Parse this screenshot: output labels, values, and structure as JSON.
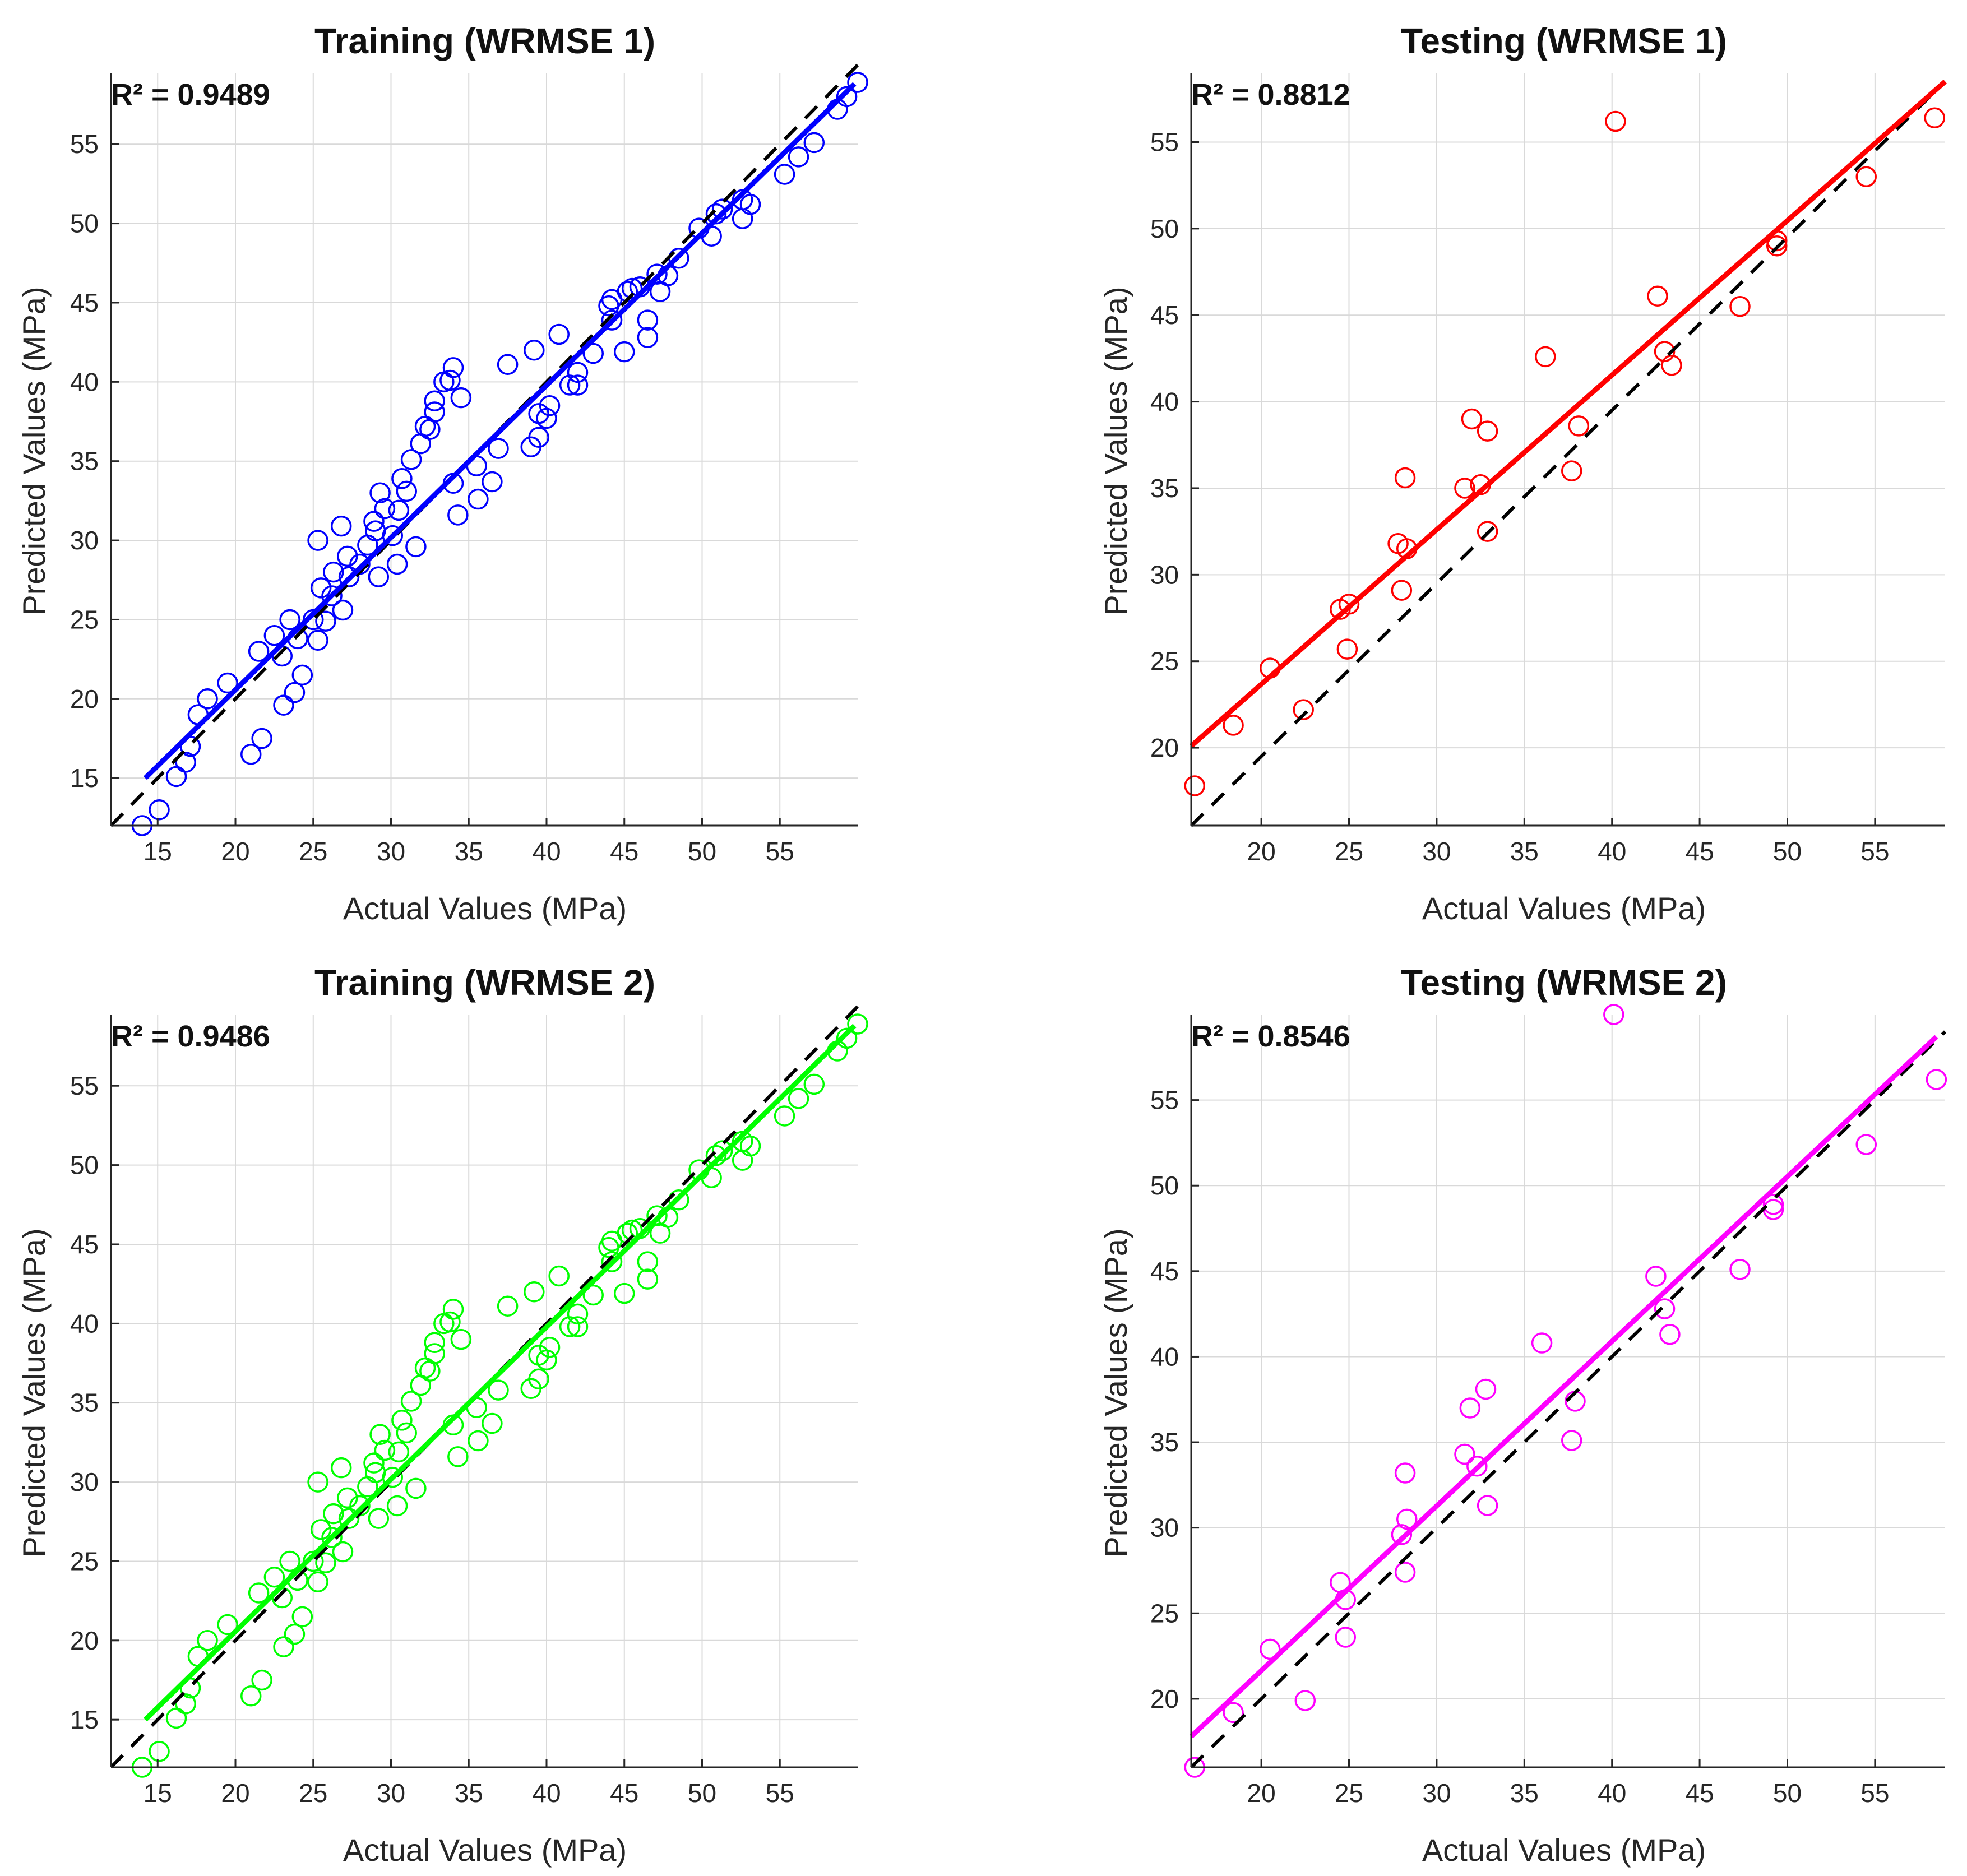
{
  "chart_data": [
    {
      "type": "scatter",
      "title": "Training (WRMSE 1)",
      "annotation": "R² = 0.9489",
      "xlabel": "Actual Values (MPa)",
      "ylabel": "Predicted Values (MPa)",
      "xlim": [
        12,
        60
      ],
      "ylim": [
        12,
        59.5
      ],
      "xticks": [
        15,
        20,
        25,
        30,
        35,
        40,
        45,
        50,
        55
      ],
      "yticks": [
        15,
        20,
        25,
        30,
        35,
        40,
        45,
        50,
        55
      ],
      "color": "#0000ff",
      "fit_line": {
        "x": [
          14.2,
          59.8
        ],
        "y": [
          15,
          58.8
        ]
      },
      "reference_line": {
        "x": [
          12,
          60
        ],
        "y": [
          12,
          60
        ]
      },
      "points": [
        [
          14.0,
          12.0
        ],
        [
          15.1,
          13.0
        ],
        [
          16.2,
          15.1
        ],
        [
          16.8,
          16.0
        ],
        [
          17.1,
          17.0
        ],
        [
          17.6,
          19.0
        ],
        [
          18.2,
          20.0
        ],
        [
          19.5,
          21.0
        ],
        [
          21.0,
          16.5
        ],
        [
          21.7,
          17.5
        ],
        [
          21.5,
          23.0
        ],
        [
          22.5,
          24.0
        ],
        [
          23.0,
          22.7
        ],
        [
          23.5,
          25.0
        ],
        [
          23.1,
          19.6
        ],
        [
          23.8,
          20.4
        ],
        [
          24.3,
          21.5
        ],
        [
          24.0,
          23.8
        ],
        [
          25.0,
          25.0
        ],
        [
          25.3,
          23.7
        ],
        [
          25.5,
          27.0
        ],
        [
          25.3,
          30.0
        ],
        [
          25.8,
          24.9
        ],
        [
          26.2,
          26.5
        ],
        [
          26.3,
          28.0
        ],
        [
          26.8,
          30.9
        ],
        [
          26.9,
          25.6
        ],
        [
          27.3,
          27.7
        ],
        [
          27.2,
          29.0
        ],
        [
          28.0,
          28.5
        ],
        [
          28.5,
          29.7
        ],
        [
          28.9,
          31.2
        ],
        [
          29.2,
          27.7
        ],
        [
          29.0,
          30.6
        ],
        [
          29.3,
          33.0
        ],
        [
          29.6,
          32.0
        ],
        [
          30.1,
          30.3
        ],
        [
          30.5,
          31.9
        ],
        [
          30.4,
          28.5
        ],
        [
          30.7,
          33.9
        ],
        [
          31.0,
          33.1
        ],
        [
          31.3,
          35.1
        ],
        [
          31.6,
          29.6
        ],
        [
          31.9,
          36.1
        ],
        [
          32.2,
          37.2
        ],
        [
          32.5,
          37.0
        ],
        [
          32.8,
          38.8
        ],
        [
          32.8,
          38.1
        ],
        [
          33.4,
          40.0
        ],
        [
          33.8,
          40.1
        ],
        [
          34.0,
          40.9
        ],
        [
          34.0,
          33.6
        ],
        [
          34.3,
          31.6
        ],
        [
          34.5,
          39.0
        ],
        [
          35.5,
          34.7
        ],
        [
          35.6,
          32.6
        ],
        [
          36.5,
          33.7
        ],
        [
          36.9,
          35.8
        ],
        [
          37.5,
          41.1
        ],
        [
          39.0,
          35.9
        ],
        [
          39.2,
          42.0
        ],
        [
          39.5,
          38.0
        ],
        [
          39.5,
          36.5
        ],
        [
          40.0,
          37.7
        ],
        [
          40.2,
          38.5
        ],
        [
          40.8,
          43.0
        ],
        [
          41.5,
          39.8
        ],
        [
          42.0,
          40.6
        ],
        [
          42.0,
          39.8
        ],
        [
          43.0,
          41.8
        ],
        [
          44.0,
          44.8
        ],
        [
          44.2,
          45.2
        ],
        [
          44.2,
          43.9
        ],
        [
          45.0,
          41.9
        ],
        [
          45.2,
          45.7
        ],
        [
          45.5,
          45.9
        ],
        [
          46.0,
          46.0
        ],
        [
          46.5,
          42.8
        ],
        [
          46.5,
          43.9
        ],
        [
          47.1,
          46.8
        ],
        [
          47.3,
          45.7
        ],
        [
          47.8,
          46.7
        ],
        [
          48.5,
          47.8
        ],
        [
          49.8,
          49.7
        ],
        [
          50.6,
          49.2
        ],
        [
          50.9,
          50.6
        ],
        [
          51.3,
          50.9
        ],
        [
          52.6,
          50.3
        ],
        [
          52.6,
          51.5
        ],
        [
          53.1,
          51.2
        ],
        [
          55.3,
          53.1
        ],
        [
          56.2,
          54.2
        ],
        [
          57.2,
          55.1
        ],
        [
          58.7,
          57.2
        ],
        [
          59.3,
          58.0
        ],
        [
          60.0,
          58.9
        ]
      ]
    },
    {
      "type": "scatter",
      "title": "Testing (WRMSE 1)",
      "annotation": "R² = 0.8812",
      "xlabel": "Actual Values (MPa)",
      "ylabel": "Predicted Values (MPa)",
      "xlim": [
        16,
        59
      ],
      "ylim": [
        15.5,
        59
      ],
      "xticks": [
        20,
        25,
        30,
        35,
        40,
        45,
        50,
        55
      ],
      "yticks": [
        20,
        25,
        30,
        35,
        40,
        45,
        50,
        55
      ],
      "color": "#ff0000",
      "fit_line": {
        "x": [
          16,
          59
        ],
        "y": [
          20.1,
          58.5
        ]
      },
      "reference_line": {
        "x": [
          16,
          59
        ],
        "y": [
          15.5,
          58.5
        ]
      },
      "points": [
        [
          16.2,
          17.8
        ],
        [
          18.4,
          21.3
        ],
        [
          20.5,
          24.6
        ],
        [
          22.4,
          22.2
        ],
        [
          24.5,
          28.0
        ],
        [
          25.0,
          28.3
        ],
        [
          24.9,
          25.7
        ],
        [
          27.8,
          31.8
        ],
        [
          28.2,
          35.6
        ],
        [
          28.0,
          29.1
        ],
        [
          28.3,
          31.5
        ],
        [
          31.6,
          35.0
        ],
        [
          32.0,
          39.0
        ],
        [
          32.5,
          35.2
        ],
        [
          32.9,
          38.3
        ],
        [
          32.9,
          32.5
        ],
        [
          36.2,
          42.6
        ],
        [
          37.7,
          36.0
        ],
        [
          38.1,
          38.6
        ],
        [
          40.2,
          56.2
        ],
        [
          42.6,
          46.1
        ],
        [
          43.0,
          42.9
        ],
        [
          43.4,
          42.1
        ],
        [
          47.3,
          45.5
        ],
        [
          49.4,
          49.0
        ],
        [
          49.4,
          49.3
        ],
        [
          54.5,
          53.0
        ],
        [
          58.4,
          56.4
        ]
      ]
    },
    {
      "type": "scatter",
      "title": "Training (WRMSE 2)",
      "annotation": "R² = 0.9486",
      "xlabel": "Actual Values (MPa)",
      "ylabel": "Predicted Values (MPa)",
      "xlim": [
        12,
        60
      ],
      "ylim": [
        12,
        59.5
      ],
      "xticks": [
        15,
        20,
        25,
        30,
        35,
        40,
        45,
        50,
        55
      ],
      "yticks": [
        15,
        20,
        25,
        30,
        35,
        40,
        45,
        50,
        55
      ],
      "color": "#00ff00",
      "fit_line": {
        "x": [
          14.2,
          59.8
        ],
        "y": [
          15,
          58.8
        ]
      },
      "reference_line": {
        "x": [
          12,
          60
        ],
        "y": [
          12,
          60
        ]
      },
      "points": [
        [
          14.0,
          12.0
        ],
        [
          15.1,
          13.0
        ],
        [
          16.2,
          15.1
        ],
        [
          16.8,
          16.0
        ],
        [
          17.1,
          17.0
        ],
        [
          17.6,
          19.0
        ],
        [
          18.2,
          20.0
        ],
        [
          19.5,
          21.0
        ],
        [
          21.0,
          16.5
        ],
        [
          21.7,
          17.5
        ],
        [
          21.5,
          23.0
        ],
        [
          22.5,
          24.0
        ],
        [
          23.0,
          22.7
        ],
        [
          23.5,
          25.0
        ],
        [
          23.1,
          19.6
        ],
        [
          23.8,
          20.4
        ],
        [
          24.3,
          21.5
        ],
        [
          24.0,
          23.8
        ],
        [
          25.0,
          25.0
        ],
        [
          25.3,
          23.7
        ],
        [
          25.5,
          27.0
        ],
        [
          25.3,
          30.0
        ],
        [
          25.8,
          24.9
        ],
        [
          26.2,
          26.5
        ],
        [
          26.3,
          28.0
        ],
        [
          26.8,
          30.9
        ],
        [
          26.9,
          25.6
        ],
        [
          27.3,
          27.7
        ],
        [
          27.2,
          29.0
        ],
        [
          28.0,
          28.5
        ],
        [
          28.5,
          29.7
        ],
        [
          28.9,
          31.2
        ],
        [
          29.2,
          27.7
        ],
        [
          29.0,
          30.6
        ],
        [
          29.3,
          33.0
        ],
        [
          29.6,
          32.0
        ],
        [
          30.1,
          30.3
        ],
        [
          30.5,
          31.9
        ],
        [
          30.4,
          28.5
        ],
        [
          30.7,
          33.9
        ],
        [
          31.0,
          33.1
        ],
        [
          31.3,
          35.1
        ],
        [
          31.6,
          29.6
        ],
        [
          31.9,
          36.1
        ],
        [
          32.2,
          37.2
        ],
        [
          32.5,
          37.0
        ],
        [
          32.8,
          38.8
        ],
        [
          32.8,
          38.1
        ],
        [
          33.4,
          40.0
        ],
        [
          33.8,
          40.1
        ],
        [
          34.0,
          40.9
        ],
        [
          34.0,
          33.6
        ],
        [
          34.3,
          31.6
        ],
        [
          34.5,
          39.0
        ],
        [
          35.5,
          34.7
        ],
        [
          35.6,
          32.6
        ],
        [
          36.5,
          33.7
        ],
        [
          36.9,
          35.8
        ],
        [
          37.5,
          41.1
        ],
        [
          39.0,
          35.9
        ],
        [
          39.2,
          42.0
        ],
        [
          39.5,
          38.0
        ],
        [
          39.5,
          36.5
        ],
        [
          40.0,
          37.7
        ],
        [
          40.2,
          38.5
        ],
        [
          40.8,
          43.0
        ],
        [
          41.5,
          39.8
        ],
        [
          42.0,
          40.6
        ],
        [
          42.0,
          39.8
        ],
        [
          43.0,
          41.8
        ],
        [
          44.0,
          44.8
        ],
        [
          44.2,
          45.2
        ],
        [
          44.2,
          43.9
        ],
        [
          45.0,
          41.9
        ],
        [
          45.2,
          45.7
        ],
        [
          45.5,
          45.9
        ],
        [
          46.0,
          46.0
        ],
        [
          46.5,
          42.8
        ],
        [
          46.5,
          43.9
        ],
        [
          47.1,
          46.8
        ],
        [
          47.3,
          45.7
        ],
        [
          47.8,
          46.7
        ],
        [
          48.5,
          47.8
        ],
        [
          49.8,
          49.7
        ],
        [
          50.6,
          49.2
        ],
        [
          50.9,
          50.6
        ],
        [
          51.3,
          50.9
        ],
        [
          52.6,
          50.3
        ],
        [
          52.6,
          51.5
        ],
        [
          53.1,
          51.2
        ],
        [
          55.3,
          53.1
        ],
        [
          56.2,
          54.2
        ],
        [
          57.2,
          55.1
        ],
        [
          58.7,
          57.2
        ],
        [
          59.3,
          58.0
        ],
        [
          60.0,
          58.9
        ]
      ]
    },
    {
      "type": "scatter",
      "title": "Testing (WRMSE 2)",
      "annotation": "R² = 0.8546",
      "xlabel": "Actual Values (MPa)",
      "ylabel": "Predicted Values (MPa)",
      "xlim": [
        16,
        59
      ],
      "ylim": [
        16,
        60
      ],
      "xticks": [
        20,
        25,
        30,
        35,
        40,
        45,
        50,
        55
      ],
      "yticks": [
        20,
        25,
        30,
        35,
        40,
        45,
        50,
        55
      ],
      "color": "#ff00ff",
      "fit_line": {
        "x": [
          16,
          58.5
        ],
        "y": [
          17.8,
          58.7
        ]
      },
      "reference_line": {
        "x": [
          16,
          59
        ],
        "y": [
          16,
          59
        ]
      },
      "points": [
        [
          16.2,
          16.0
        ],
        [
          18.4,
          19.2
        ],
        [
          20.5,
          22.9
        ],
        [
          22.5,
          19.9
        ],
        [
          24.5,
          26.8
        ],
        [
          24.8,
          25.8
        ],
        [
          24.8,
          23.6
        ],
        [
          28.0,
          29.6
        ],
        [
          28.2,
          33.2
        ],
        [
          28.2,
          27.4
        ],
        [
          28.3,
          30.5
        ],
        [
          31.6,
          34.3
        ],
        [
          31.9,
          37.0
        ],
        [
          32.3,
          33.6
        ],
        [
          32.8,
          38.1
        ],
        [
          32.9,
          31.3
        ],
        [
          36.0,
          40.8
        ],
        [
          37.7,
          35.1
        ],
        [
          37.9,
          37.4
        ],
        [
          40.1,
          60.0
        ],
        [
          42.5,
          44.7
        ],
        [
          43.0,
          42.8
        ],
        [
          43.3,
          41.3
        ],
        [
          47.3,
          45.1
        ],
        [
          49.2,
          48.6
        ],
        [
          49.2,
          48.9
        ],
        [
          54.5,
          52.4
        ],
        [
          58.5,
          56.2
        ]
      ]
    }
  ]
}
